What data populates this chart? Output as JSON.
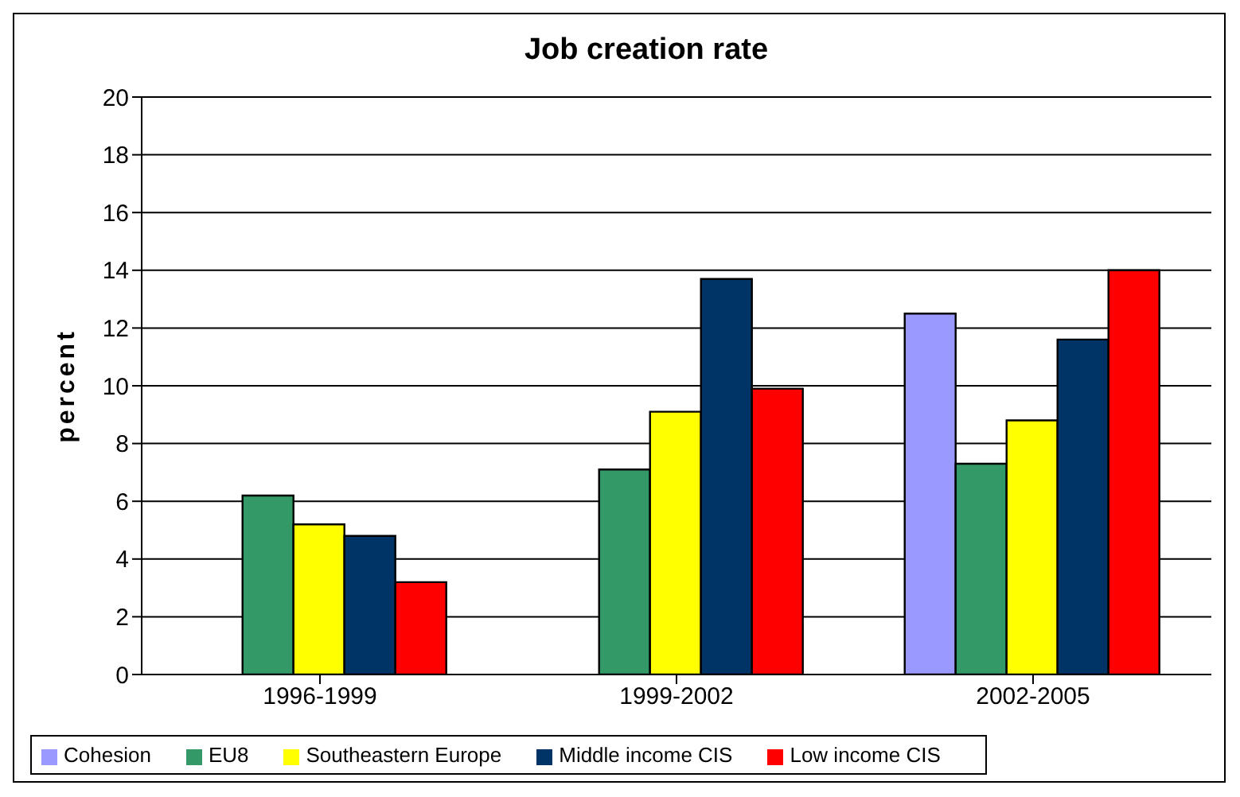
{
  "chart_data": {
    "type": "bar",
    "title": "Job creation rate",
    "ylabel": "percent",
    "categories": [
      "1996-1999",
      "1999-2002",
      "2002-2005"
    ],
    "series": [
      {
        "name": "Cohesion",
        "color": "#9999ff",
        "values": [
          null,
          null,
          12.5
        ]
      },
      {
        "name": "EU8",
        "color": "#339966",
        "values": [
          6.2,
          7.1,
          7.3
        ]
      },
      {
        "name": "Southeastern Europe",
        "color": "#ffff00",
        "values": [
          5.2,
          9.1,
          8.8
        ]
      },
      {
        "name": "Middle income CIS",
        "color": "#003366",
        "values": [
          4.8,
          13.7,
          11.6
        ]
      },
      {
        "name": "Low income CIS",
        "color": "#ff0000",
        "values": [
          3.2,
          9.9,
          14.0
        ]
      }
    ],
    "ylim": [
      0,
      20
    ],
    "yticks": [
      0,
      2,
      4,
      6,
      8,
      10,
      12,
      14,
      16,
      18,
      20
    ],
    "grid": "y",
    "legend": "bottom"
  }
}
